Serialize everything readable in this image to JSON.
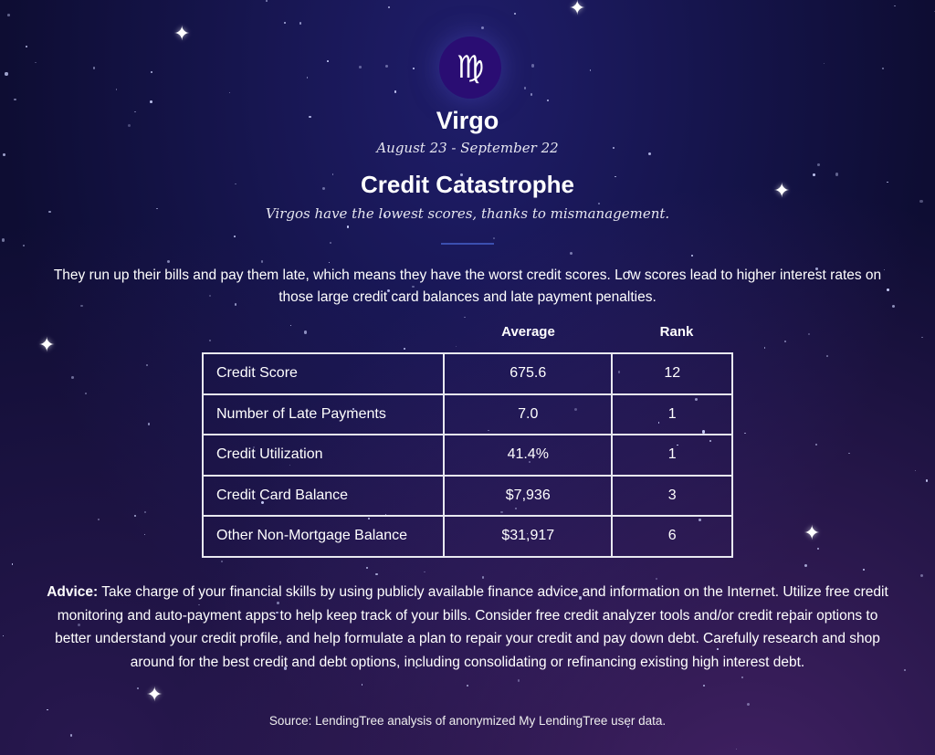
{
  "sign": {
    "icon": "virgo-icon",
    "glyph": "♍",
    "name": "Virgo",
    "dates": "August 23 - September 22"
  },
  "heading": "Credit Catastrophe",
  "tagline": "Virgos have the lowest scores, thanks to mismanagement.",
  "intro": "They run up their bills and pay them late, which means they have the worst credit scores. Low scores lead to higher interest rates on those large credit card balances and late payment penalties.",
  "table": {
    "headers": [
      "Average",
      "Rank"
    ],
    "rows": [
      {
        "label": "Credit Score",
        "average": "675.6",
        "rank": "12"
      },
      {
        "label": "Number of Late Payments",
        "average": "7.0",
        "rank": "1"
      },
      {
        "label": "Credit Utilization",
        "average": "41.4%",
        "rank": "1"
      },
      {
        "label": "Credit Card Balance",
        "average": "$7,936",
        "rank": "3"
      },
      {
        "label": "Other Non-Mortgage Balance",
        "average": "$31,917",
        "rank": "6"
      }
    ]
  },
  "advice": {
    "label": "Advice:",
    "text": " Take charge of your financial skills by using publicly available finance advice and information on the Internet. Utilize free credit monitoring and auto-payment apps to help keep track of your bills. Consider free credit analyzer tools and/or credit repair options to better understand your credit profile, and help formulate a plan to repair your credit and pay down debt. Carefully research and shop around for the best credit and debt options, including consolidating or refinancing existing high interest debt."
  },
  "source": "Source: LendingTree analysis of anonymized My LendingTree user data.",
  "colors": {
    "background": "#15144a",
    "logo": "#2a0d73",
    "divider": "#3b4fb0"
  }
}
